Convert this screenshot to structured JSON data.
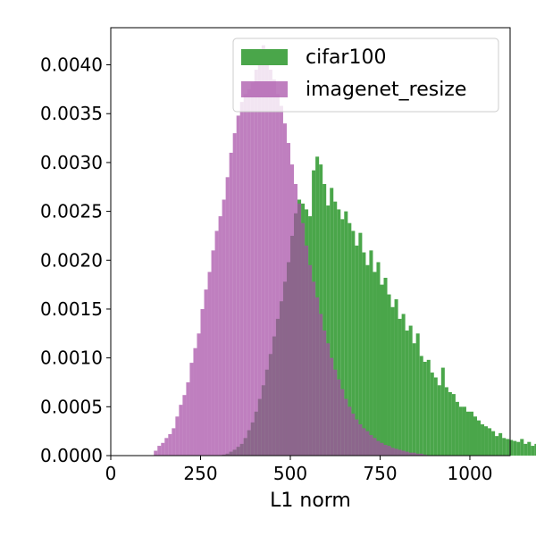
{
  "chart_data": {
    "type": "bar",
    "title": "",
    "xlabel": "L1 norm",
    "ylabel": "",
    "xlim": [
      0,
      1112
    ],
    "ylim": [
      0,
      0.00438
    ],
    "x_ticks": [
      0,
      250,
      500,
      750,
      1000
    ],
    "x_tick_labels": [
      "0",
      "250",
      "500",
      "750",
      "1000"
    ],
    "y_ticks": [
      0,
      0.0005,
      0.001,
      0.0015,
      0.002,
      0.0025,
      0.003,
      0.0035,
      0.004
    ],
    "y_tick_labels": [
      "0.0000",
      "0.0005",
      "0.0010",
      "0.0015",
      "0.0020",
      "0.0025",
      "0.0030",
      "0.0035",
      "0.0040"
    ],
    "grid": false,
    "legend_position": "top-right",
    "bin_width": 10,
    "series": [
      {
        "name": "cifar100",
        "color": "#4aa64a",
        "bin_start": 310,
        "values": [
          1e-05,
          2e-05,
          4e-05,
          6e-05,
          9e-05,
          0.00012,
          0.00018,
          0.00026,
          0.00034,
          0.00045,
          0.00058,
          0.00072,
          0.00088,
          0.00104,
          0.00122,
          0.0014,
          0.00158,
          0.00178,
          0.00198,
          0.00225,
          0.00248,
          0.00262,
          0.00258,
          0.00252,
          0.00245,
          0.00292,
          0.00306,
          0.00298,
          0.00278,
          0.00256,
          0.00274,
          0.0026,
          0.00252,
          0.00242,
          0.0025,
          0.00238,
          0.0023,
          0.00215,
          0.00228,
          0.00208,
          0.00195,
          0.0021,
          0.00188,
          0.00198,
          0.00175,
          0.00182,
          0.00165,
          0.00152,
          0.0016,
          0.0014,
          0.00145,
          0.00128,
          0.00133,
          0.00115,
          0.00125,
          0.00102,
          0.00096,
          0.00098,
          0.00085,
          0.0008,
          0.00072,
          0.0009,
          0.0007,
          0.00065,
          0.00063,
          0.00055,
          0.0005,
          0.0005,
          0.00045,
          0.00045,
          0.0004,
          0.00036,
          0.00032,
          0.0003,
          0.00028,
          0.00025,
          0.0002,
          0.00023,
          0.00018,
          0.00017,
          0.00016,
          0.00015,
          0.00014,
          0.00017,
          0.00012,
          0.00014,
          0.0001,
          0.00012,
          0.0001,
          0.00018,
          0.0001,
          8e-05,
          9e-05,
          5e-05,
          7e-05,
          9e-05,
          0.00013,
          5e-05,
          4e-05,
          3e-05,
          2e-05,
          2e-05
        ]
      },
      {
        "name": "imagenet_resize",
        "color": "#a64da6",
        "bin_start": 120,
        "values": [
          5e-05,
          0.0001,
          0.00013,
          0.00018,
          0.00022,
          0.00028,
          0.0004,
          0.00052,
          0.00062,
          0.00075,
          0.00095,
          0.0011,
          0.00125,
          0.0015,
          0.0017,
          0.00188,
          0.0021,
          0.0023,
          0.00245,
          0.00262,
          0.00285,
          0.0031,
          0.0033,
          0.00348,
          0.00362,
          0.0037,
          0.00375,
          0.00382,
          0.00395,
          0.0041,
          0.0042,
          0.00405,
          0.00395,
          0.00385,
          0.0037,
          0.00358,
          0.0034,
          0.0032,
          0.00298,
          0.00278,
          0.00258,
          0.00238,
          0.00215,
          0.00195,
          0.00178,
          0.00162,
          0.00145,
          0.00128,
          0.00115,
          0.001,
          0.00088,
          0.00078,
          0.00068,
          0.00058,
          0.0005,
          0.00043,
          0.00037,
          0.00032,
          0.00028,
          0.00025,
          0.00021,
          0.00018,
          0.00015,
          0.00013,
          0.00011,
          0.0001,
          8e-05,
          7e-05,
          6e-05,
          5e-05,
          4e-05,
          3e-05,
          3e-05,
          2e-05,
          2e-05,
          1e-05
        ]
      }
    ]
  }
}
